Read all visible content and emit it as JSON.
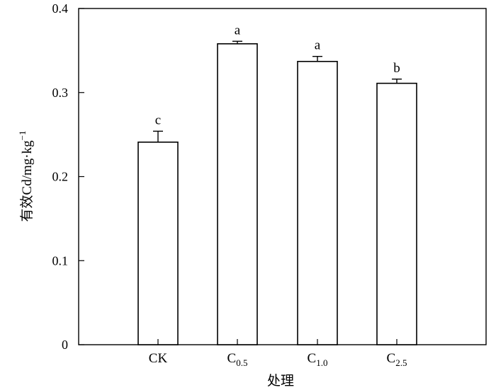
{
  "chart_data": {
    "type": "bar",
    "categories": [
      {
        "base": "CK",
        "sub": ""
      },
      {
        "base": "C",
        "sub": "0.5"
      },
      {
        "base": "C",
        "sub": "1.0"
      },
      {
        "base": "C",
        "sub": "2.5"
      }
    ],
    "values": [
      0.241,
      0.358,
      0.337,
      0.311
    ],
    "errors": [
      0.013,
      0.003,
      0.006,
      0.005
    ],
    "significance": [
      "c",
      "a",
      "a",
      "b"
    ],
    "xlabel": "处理",
    "ylabel": "有效Cd/mg·kg",
    "ylabel_sup": "−1",
    "ylim": [
      0,
      0.4
    ],
    "yticks": [
      "0",
      "0.1",
      "0.2",
      "0.3",
      "0.4"
    ],
    "grid": false,
    "colors": {
      "bar_fill": "#ffffff",
      "bar_stroke": "#000000"
    }
  }
}
